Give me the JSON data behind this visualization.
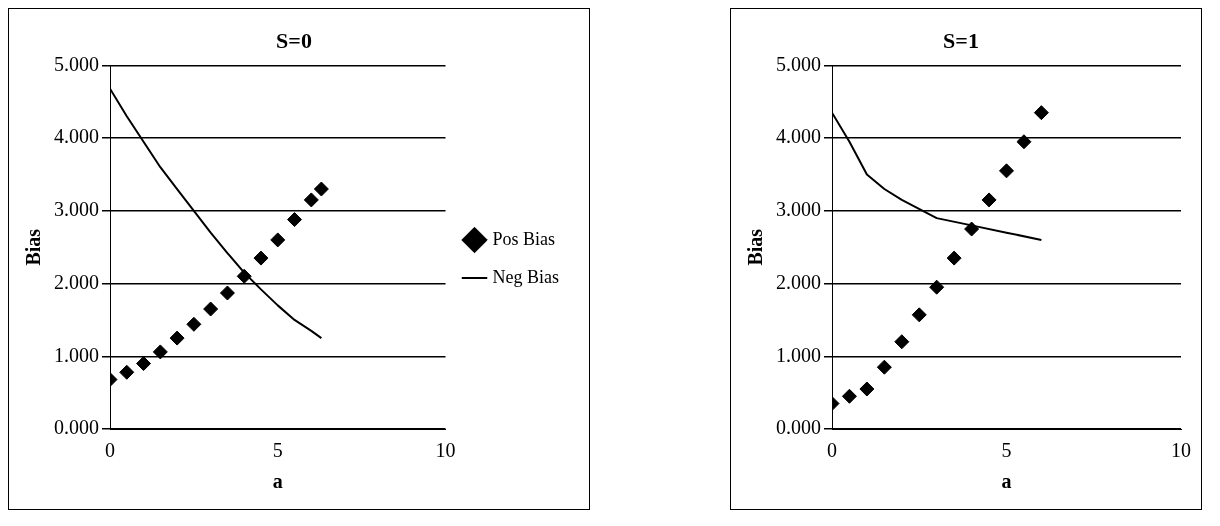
{
  "chart_data": [
    {
      "type": "scatter",
      "title": "S=0",
      "xlabel": "a",
      "ylabel": "Bias",
      "xlim": [
        0,
        10
      ],
      "xticks": [
        0,
        5,
        10
      ],
      "ylim": [
        0,
        5
      ],
      "yticks": [
        {
          "value": 0,
          "label": "0.000"
        },
        {
          "value": 1,
          "label": "1.000"
        },
        {
          "value": 2,
          "label": "2.000"
        },
        {
          "value": 3,
          "label": "3.000"
        },
        {
          "value": 4,
          "label": "4.000"
        },
        {
          "value": 5,
          "label": "5.000"
        }
      ],
      "grid": "y",
      "legend": "right",
      "series": [
        {
          "name": "Pos Bias",
          "type": "scatter",
          "marker": "diamond",
          "color": "#000000",
          "x": [
            0,
            0.5,
            1,
            1.5,
            2,
            2.5,
            3,
            3.5,
            4,
            4.5,
            5,
            5.5,
            6,
            6.3
          ],
          "values": [
            0.68,
            0.78,
            0.9,
            1.06,
            1.25,
            1.44,
            1.65,
            1.87,
            2.1,
            2.35,
            2.6,
            2.88,
            3.15,
            3.3
          ]
        },
        {
          "name": "Neg Bias",
          "type": "line",
          "marker": "none",
          "color": "#000000",
          "x": [
            0,
            0.5,
            1,
            1.5,
            2,
            2.5,
            3,
            3.5,
            4,
            4.5,
            5,
            5.5,
            6,
            6.3
          ],
          "values": [
            4.68,
            4.3,
            3.95,
            3.6,
            3.3,
            3.0,
            2.7,
            2.42,
            2.15,
            1.92,
            1.7,
            1.5,
            1.35,
            1.25
          ]
        }
      ]
    },
    {
      "type": "scatter",
      "title": "S=1",
      "xlabel": "a",
      "ylabel": "Bias",
      "xlim": [
        0,
        10
      ],
      "xticks": [
        0,
        5,
        10
      ],
      "ylim": [
        0,
        5
      ],
      "yticks": [
        {
          "value": 0,
          "label": "0.000"
        },
        {
          "value": 1,
          "label": "1.000"
        },
        {
          "value": 2,
          "label": "2.000"
        },
        {
          "value": 3,
          "label": "3.000"
        },
        {
          "value": 4,
          "label": "4.000"
        },
        {
          "value": 5,
          "label": "5.000"
        }
      ],
      "grid": "y",
      "series": [
        {
          "type": "scatter",
          "marker": "diamond",
          "color": "#000000",
          "x": [
            0,
            0.5,
            1,
            1.5,
            2,
            2.5,
            3,
            3.5,
            4,
            4.5,
            5,
            5.5,
            6
          ],
          "values": [
            0.35,
            0.45,
            0.55,
            0.85,
            1.2,
            1.57,
            1.95,
            2.35,
            2.75,
            3.15,
            3.55,
            3.95,
            4.35
          ]
        },
        {
          "type": "line",
          "marker": "none",
          "color": "#000000",
          "x": [
            0,
            0.5,
            1,
            1.5,
            2,
            3,
            4,
            5,
            6
          ],
          "values": [
            4.35,
            3.95,
            3.5,
            3.3,
            3.15,
            2.9,
            2.8,
            2.7,
            2.6
          ]
        }
      ]
    }
  ]
}
